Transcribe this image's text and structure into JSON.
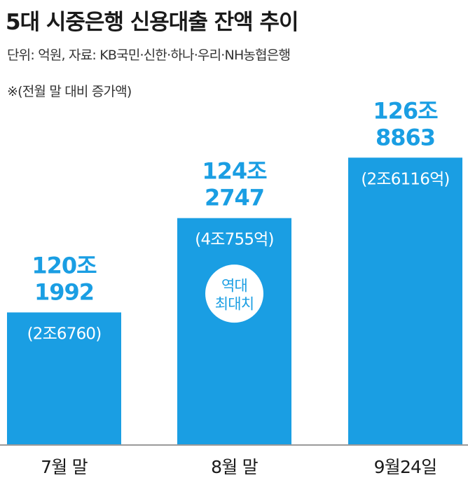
{
  "header": {
    "title": "5대 시중은행 신용대출 잔액 추이",
    "subtitle": "단위: 억원, 자료: KB국민·신한·하나·우리·NH농협은행",
    "note": "※(전월 말 대비 증가액)"
  },
  "colors": {
    "bar": "#1a9ee3",
    "value_label": "#1a9ee3",
    "change_label": "#ffffff",
    "badge_border": "#1a9ee3",
    "badge_text": "#1a9ee3",
    "badge_fill": "#ffffff",
    "axis_label": "#1a1a1a"
  },
  "chart_data": {
    "type": "bar",
    "categories": [
      "7월 말",
      "8월 말",
      "9월24일"
    ],
    "values": [
      1201992,
      1242747,
      1268863
    ],
    "value_labels": [
      [
        "120조",
        "1992"
      ],
      [
        "124조",
        "2747"
      ],
      [
        "126조",
        "8863"
      ]
    ],
    "change_labels": [
      "(2조6760)",
      "(4조755억)",
      "(2조6116억)"
    ],
    "change_values": [
      26760,
      40755,
      26116
    ],
    "annotation": {
      "category": "8월 말",
      "lines": [
        "역대",
        "최대치"
      ]
    },
    "xlabel": "",
    "ylabel": "",
    "ylim": [
      1145000,
      1275000
    ],
    "grid": false,
    "legend": "none"
  }
}
